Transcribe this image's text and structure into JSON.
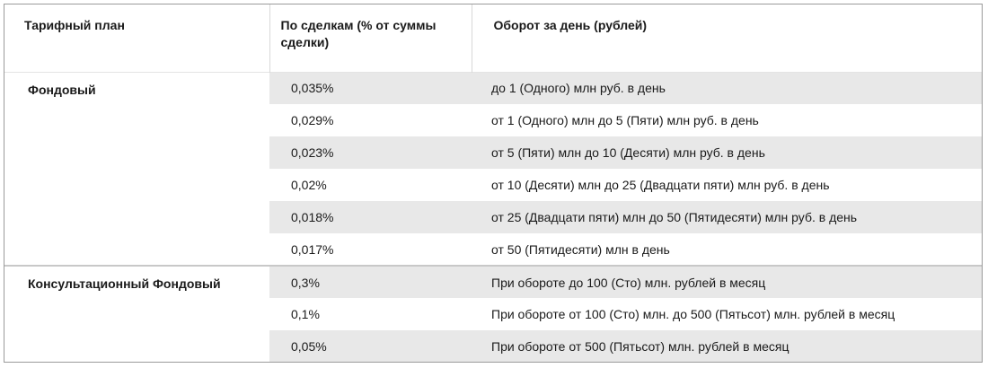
{
  "headers": {
    "plan": "Тарифный план",
    "per_deal_line1": "По сделкам (% от суммы",
    "per_deal_line2": "сделки)",
    "turnover": "Оборот за день (рублей)"
  },
  "groups": [
    {
      "name": "Фондовый",
      "rows": [
        {
          "rate": "0,035%",
          "turnover": "до 1 (Одного) млн руб. в день"
        },
        {
          "rate": "0,029%",
          "turnover": "от 1 (Одного) млн до 5 (Пяти) млн руб. в день"
        },
        {
          "rate": "0,023%",
          "turnover": "от 5 (Пяти) млн до 10 (Десяти) млн руб. в день"
        },
        {
          "rate": "0,02%",
          "turnover": "от 10 (Десяти) млн до 25 (Двадцати пяти) млн руб. в день"
        },
        {
          "rate": "0,018%",
          "turnover": "от 25 (Двадцати пяти) млн до 50 (Пятидесяти) млн руб. в день"
        },
        {
          "rate": "0,017%",
          "turnover": "от 50 (Пятидесяти) млн в день"
        }
      ]
    },
    {
      "name": "Консультационный Фондовый",
      "rows": [
        {
          "rate": "0,3%",
          "turnover": "При обороте до 100 (Сто) млн. рублей в месяц"
        },
        {
          "rate": "0,1%",
          "turnover": "При обороте от 100 (Сто) млн. до 500 (Пятьсот) млн. рублей в месяц"
        },
        {
          "rate": "0,05%",
          "turnover": "При обороте от 500 (Пятьсот) млн. рублей в месяц"
        }
      ]
    }
  ]
}
